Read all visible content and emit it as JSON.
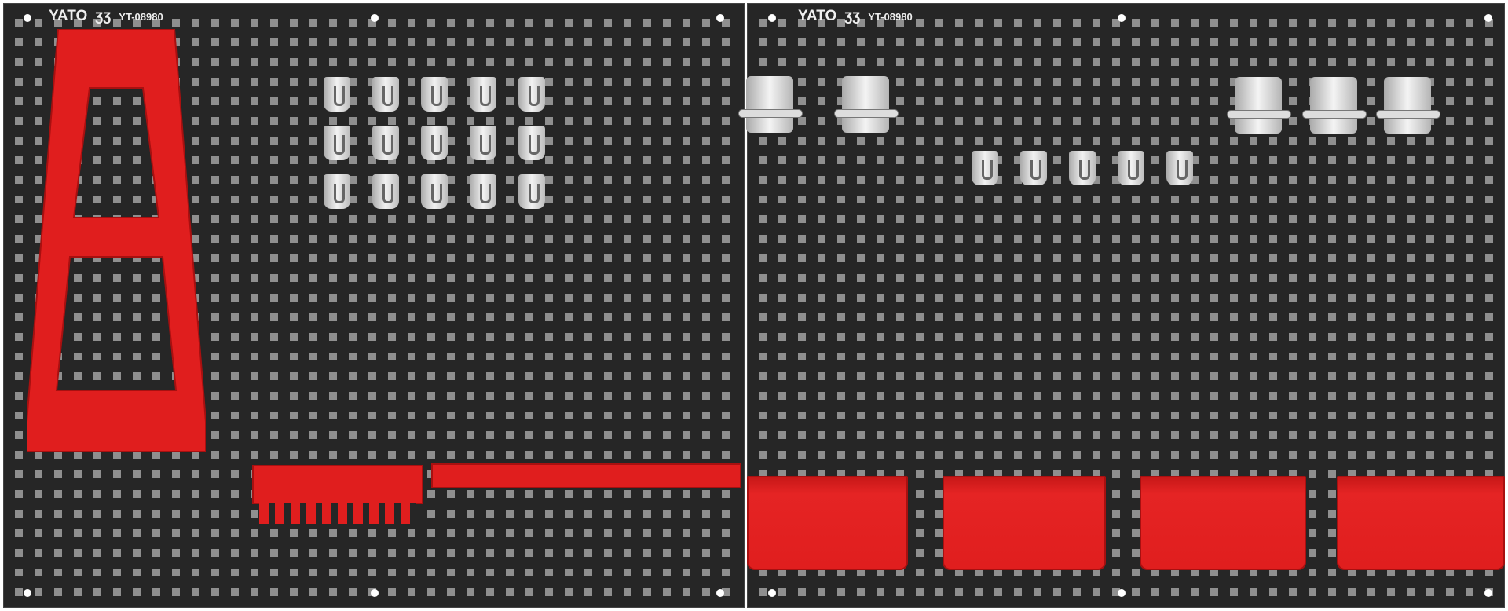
{
  "panels": [
    {
      "brand": "YATO",
      "model": "YT-08980"
    },
    {
      "brand": "YATO",
      "model": "YT-08980"
    }
  ],
  "colors": {
    "board": "#262626",
    "accessory_red": "#e01e1e",
    "hooks": "#d8d8d8"
  },
  "icons": [
    "yato-logo-icon"
  ]
}
